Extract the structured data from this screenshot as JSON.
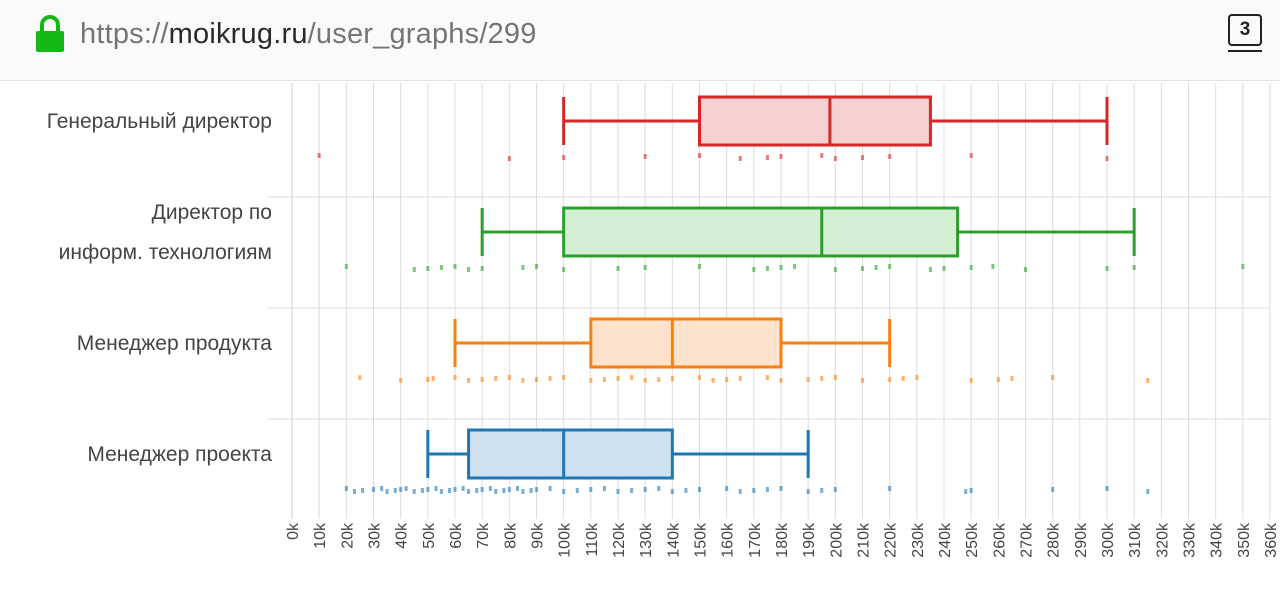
{
  "browser": {
    "url_prefix": "https://",
    "url_host": "moikrug.ru",
    "url_path": "/user_graphs/299",
    "tab_count": "3"
  },
  "chart_data": {
    "type": "box",
    "orientation": "horizontal",
    "x_unit": "k",
    "xlim": [
      0,
      360
    ],
    "x_ticks": [
      0,
      10,
      20,
      30,
      40,
      50,
      60,
      70,
      80,
      90,
      100,
      110,
      120,
      130,
      140,
      150,
      160,
      170,
      180,
      190,
      200,
      210,
      220,
      230,
      240,
      250,
      260,
      270,
      280,
      290,
      300,
      310,
      320,
      330,
      340,
      350,
      360
    ],
    "x_tick_labels": [
      "0k",
      "10k",
      "20k",
      "30k",
      "40k",
      "50k",
      "60k",
      "70k",
      "80k",
      "90k",
      "100k",
      "110k",
      "120k",
      "130k",
      "140k",
      "150k",
      "160k",
      "170k",
      "180k",
      "190k",
      "200k",
      "210k",
      "220k",
      "230k",
      "240k",
      "250k",
      "260k",
      "270k",
      "280k",
      "290k",
      "300k",
      "310k",
      "320k",
      "330k",
      "340k",
      "350k",
      "360k"
    ],
    "grid": true,
    "series": [
      {
        "label_lines": [
          "Генеральный директор"
        ],
        "color": "#d62728",
        "fill": "#f6cfd0",
        "whisker_low": 100,
        "q1": 150,
        "median": 198,
        "q3": 235,
        "whisker_high": 300,
        "points": [
          10,
          80,
          100,
          130,
          150,
          165,
          175,
          180,
          195,
          200,
          210,
          220,
          250,
          300
        ]
      },
      {
        "label_lines": [
          "Директор по",
          "информ. технологиям"
        ],
        "color": "#2ca02c",
        "fill": "#d4efd4",
        "whisker_low": 70,
        "q1": 100,
        "median": 195,
        "q3": 245,
        "whisker_high": 310,
        "points": [
          20,
          45,
          50,
          55,
          60,
          65,
          70,
          85,
          90,
          100,
          120,
          130,
          150,
          170,
          175,
          180,
          185,
          200,
          210,
          215,
          220,
          235,
          240,
          250,
          258,
          270,
          300,
          310,
          350
        ]
      },
      {
        "label_lines": [
          "Менеджер продукта"
        ],
        "color": "#ff7f0e",
        "fill": "#fde3ce",
        "whisker_low": 60,
        "q1": 110,
        "median": 140,
        "q3": 180,
        "whisker_high": 220,
        "points": [
          25,
          40,
          50,
          52,
          60,
          65,
          70,
          75,
          80,
          85,
          90,
          95,
          100,
          110,
          115,
          120,
          125,
          130,
          135,
          140,
          150,
          155,
          160,
          165,
          175,
          180,
          190,
          195,
          200,
          210,
          220,
          225,
          230,
          250,
          260,
          265,
          280,
          315
        ]
      },
      {
        "label_lines": [
          "Менеджер проекта"
        ],
        "color": "#1f77b4",
        "fill": "#cfe1f1",
        "whisker_low": 50,
        "q1": 65,
        "median": 100,
        "q3": 140,
        "whisker_high": 190,
        "points": [
          20,
          23,
          26,
          30,
          33,
          35,
          38,
          40,
          42,
          45,
          48,
          50,
          53,
          55,
          58,
          60,
          63,
          65,
          68,
          70,
          73,
          75,
          78,
          80,
          83,
          85,
          88,
          90,
          95,
          100,
          105,
          110,
          115,
          120,
          125,
          130,
          135,
          140,
          145,
          150,
          160,
          165,
          170,
          175,
          180,
          190,
          195,
          200,
          220,
          248,
          250,
          280,
          300,
          315
        ]
      }
    ]
  }
}
